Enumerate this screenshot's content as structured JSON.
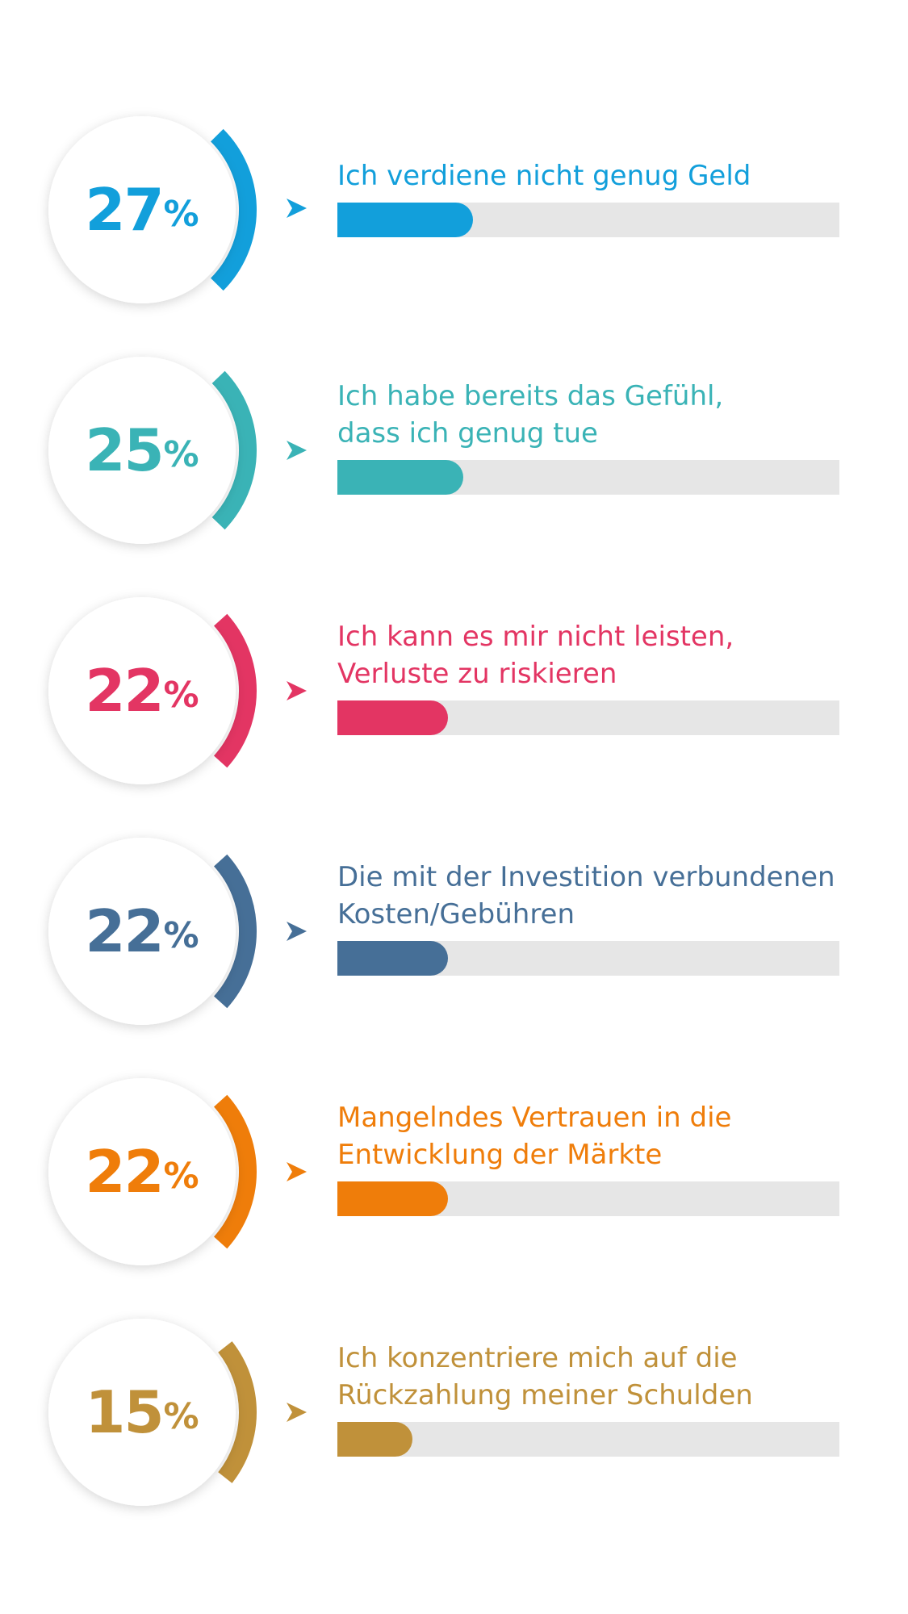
{
  "chart_data": {
    "type": "bar",
    "items": [
      {
        "value": 27,
        "percent_sign": "%",
        "label_lines": [
          "Ich verdiene nicht genug Geld"
        ],
        "color": "#129fdb"
      },
      {
        "value": 25,
        "percent_sign": "%",
        "label_lines": [
          "Ich habe bereits das Gefühl,",
          "dass ich genug tue"
        ],
        "color": "#3ab3b6"
      },
      {
        "value": 22,
        "percent_sign": "%",
        "label_lines": [
          "Ich kann es mir nicht leisten,",
          "Verluste zu riskieren"
        ],
        "color": "#e33563"
      },
      {
        "value": 22,
        "percent_sign": "%",
        "label_lines": [
          "Die mit der Investition verbundenen",
          "Kosten/Gebühren"
        ],
        "color": "#466f97"
      },
      {
        "value": 22,
        "percent_sign": "%",
        "label_lines": [
          "Mangelndes Vertrauen in die",
          "Entwicklung der Märkte"
        ],
        "color": "#ef7d0a"
      },
      {
        "value": 15,
        "percent_sign": "%",
        "label_lines": [
          "Ich konzentriere mich auf die",
          "Rückzahlung meiner Schulden"
        ],
        "color": "#c0913a"
      }
    ]
  }
}
